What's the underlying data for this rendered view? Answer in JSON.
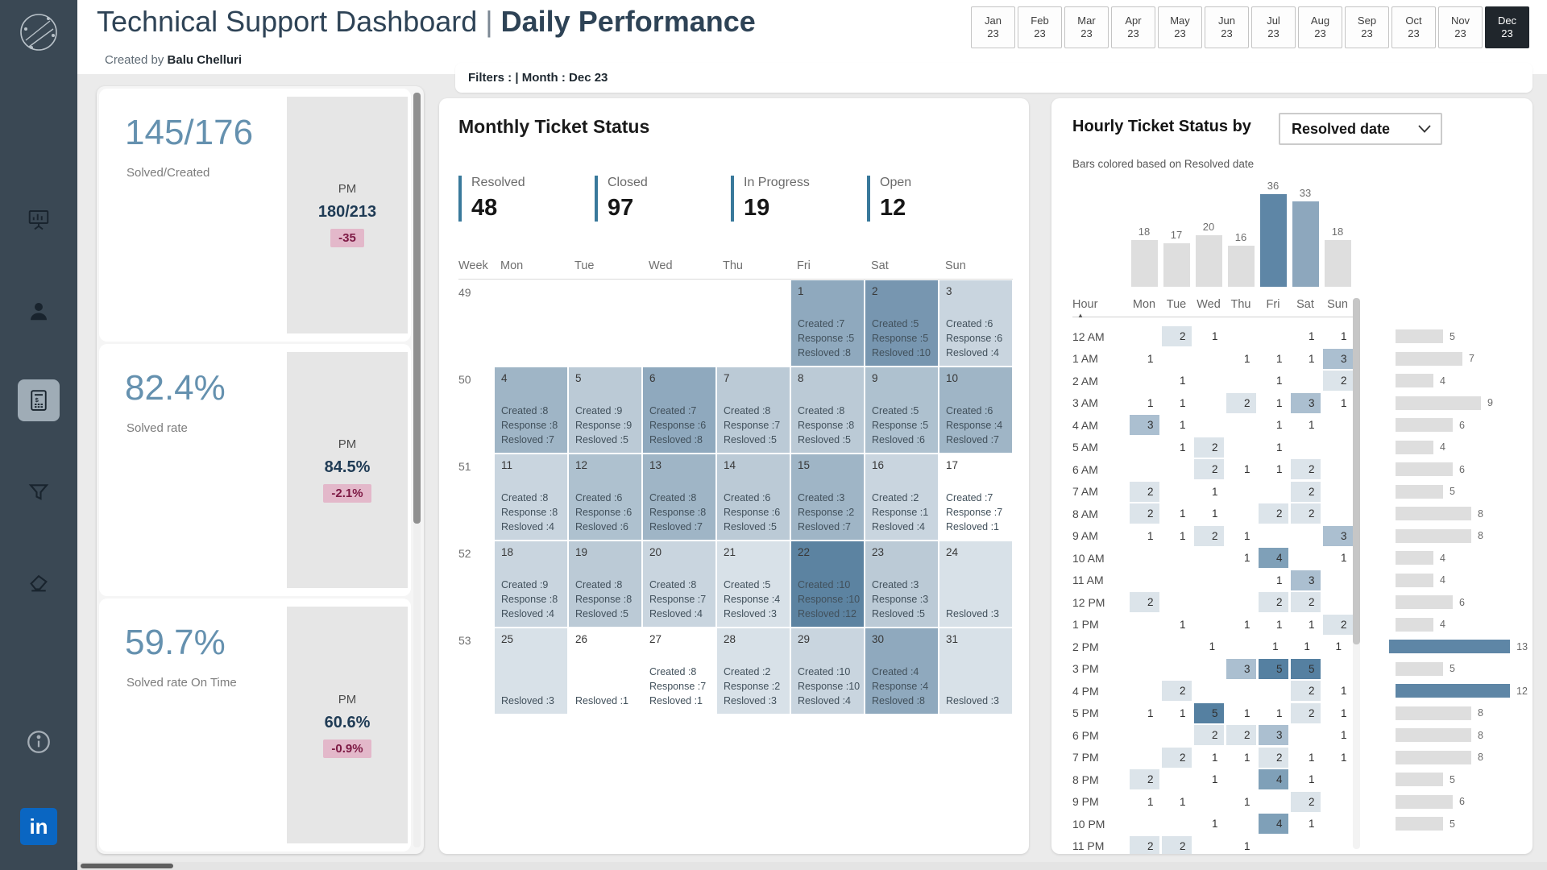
{
  "sidebar": {
    "linkedin_label": "in"
  },
  "header": {
    "title": "Technical Support Dashboard",
    "separator": "|",
    "subtitle": "Daily Performance",
    "created_by_prefix": "Created by ",
    "created_by_name": "Balu Chelluri"
  },
  "month_tabs": {
    "items": [
      {
        "month": "Jan",
        "year": "23"
      },
      {
        "month": "Feb",
        "year": "23"
      },
      {
        "month": "Mar",
        "year": "23"
      },
      {
        "month": "Apr",
        "year": "23"
      },
      {
        "month": "May",
        "year": "23"
      },
      {
        "month": "Jun",
        "year": "23"
      },
      {
        "month": "Jul",
        "year": "23"
      },
      {
        "month": "Aug",
        "year": "23"
      },
      {
        "month": "Sep",
        "year": "23"
      },
      {
        "month": "Oct",
        "year": "23"
      },
      {
        "month": "Nov",
        "year": "23"
      },
      {
        "month": "Dec",
        "year": "23",
        "active": true
      }
    ]
  },
  "filters_bar": {
    "text": "Filters : | Month : Dec 23"
  },
  "kpi_cards": [
    {
      "value": "145/176",
      "label": "Solved/Created",
      "pm_label": "PM",
      "pm_value": "180/213",
      "delta": "-35"
    },
    {
      "value": "82.4%",
      "label": "Solved rate",
      "pm_label": "PM",
      "pm_value": "84.5%",
      "delta": "-2.1%"
    },
    {
      "value": "59.7%",
      "label": "Solved rate On Time",
      "pm_label": "PM",
      "pm_value": "60.6%",
      "delta": "-0.9%"
    }
  ],
  "monthly": {
    "title": "Monthly Ticket Status",
    "statuses": [
      {
        "label": "Resolved",
        "value": "48"
      },
      {
        "label": "Closed",
        "value": "97"
      },
      {
        "label": "In Progress",
        "value": "19"
      },
      {
        "label": "Open",
        "value": "12"
      }
    ],
    "calendar": {
      "columns": [
        "Week",
        "Mon",
        "Tue",
        "Wed",
        "Thu",
        "Fri",
        "Sat",
        "Sun"
      ],
      "line_labels": {
        "created": "Created :",
        "response": "Response :",
        "resolved": "Resloved :"
      },
      "weeks": [
        {
          "week": "49",
          "days": [
            null,
            null,
            null,
            null,
            {
              "day": "1",
              "created": 7,
              "response": 5,
              "resolved": 8
            },
            {
              "day": "2",
              "created": 5,
              "response": 5,
              "resolved": 10
            },
            {
              "day": "3",
              "created": 6,
              "response": 6,
              "resolved": 4
            }
          ]
        },
        {
          "week": "50",
          "days": [
            {
              "day": "4",
              "created": 8,
              "response": 8,
              "resolved": 7
            },
            {
              "day": "5",
              "created": 9,
              "response": 9,
              "resolved": 5
            },
            {
              "day": "6",
              "created": 7,
              "response": 6,
              "resolved": 8
            },
            {
              "day": "7",
              "created": 8,
              "response": 7,
              "resolved": 5
            },
            {
              "day": "8",
              "created": 8,
              "response": 8,
              "resolved": 5
            },
            {
              "day": "9",
              "created": 5,
              "response": 5,
              "resolved": 6
            },
            {
              "day": "10",
              "created": 6,
              "response": 4,
              "resolved": 7
            }
          ]
        },
        {
          "week": "51",
          "days": [
            {
              "day": "11",
              "created": 8,
              "response": 8,
              "resolved": 4
            },
            {
              "day": "12",
              "created": 6,
              "response": 6,
              "resolved": 6
            },
            {
              "day": "13",
              "created": 8,
              "response": 8,
              "resolved": 7
            },
            {
              "day": "14",
              "created": 6,
              "response": 6,
              "resolved": 5
            },
            {
              "day": "15",
              "created": 3,
              "response": 2,
              "resolved": 7
            },
            {
              "day": "16",
              "created": 2,
              "response": 1,
              "resolved": 4
            },
            {
              "day": "17",
              "created": 7,
              "response": 7,
              "resolved": 1
            }
          ]
        },
        {
          "week": "52",
          "days": [
            {
              "day": "18",
              "created": 9,
              "response": 8,
              "resolved": 4
            },
            {
              "day": "19",
              "created": 8,
              "response": 8,
              "resolved": 5
            },
            {
              "day": "20",
              "created": 8,
              "response": 7,
              "resolved": 4
            },
            {
              "day": "21",
              "created": 5,
              "response": 4,
              "resolved": 3
            },
            {
              "day": "22",
              "created": 10,
              "response": 10,
              "resolved": 12
            },
            {
              "day": "23",
              "created": 3,
              "response": 3,
              "resolved": 5
            },
            {
              "day": "24",
              "resolved": 3
            }
          ]
        },
        {
          "week": "53",
          "days": [
            {
              "day": "25",
              "resolved": 3
            },
            {
              "day": "26",
              "resolved": 1
            },
            {
              "day": "27",
              "created": 8,
              "response": 7,
              "resolved": 1
            },
            {
              "day": "28",
              "created": 2,
              "response": 2,
              "resolved": 3
            },
            {
              "day": "29",
              "created": 10,
              "response": 10,
              "resolved": 4
            },
            {
              "day": "30",
              "created": 4,
              "response": 4,
              "resolved": 8
            },
            {
              "day": "31",
              "resolved": 3
            }
          ]
        }
      ]
    }
  },
  "hourly": {
    "title": "Hourly Ticket Status by",
    "dropdown_value": "Resolved date",
    "subtitle": "Bars colored based on Resolved date",
    "hour_label": "Hour",
    "day_columns": [
      "Mon",
      "Tue",
      "Wed",
      "Thu",
      "Fri",
      "Sat",
      "Sun"
    ],
    "top_bars": {
      "values": [
        18,
        17,
        20,
        16,
        36,
        33,
        18
      ],
      "colors": [
        "#DEDEDE",
        "#DEDEDE",
        "#DEDEDE",
        "#DEDEDE",
        "#5E86A6",
        "#8DA7BD",
        "#DEDEDE"
      ]
    },
    "rows": [
      {
        "hour": "12 AM",
        "cells": [
          null,
          2,
          1,
          null,
          null,
          1,
          1
        ],
        "bar": 5
      },
      {
        "hour": "1 AM",
        "cells": [
          1,
          null,
          null,
          1,
          1,
          1,
          3
        ],
        "bar": 7
      },
      {
        "hour": "2 AM",
        "cells": [
          null,
          1,
          null,
          null,
          1,
          null,
          2
        ],
        "bar": 4
      },
      {
        "hour": "3 AM",
        "cells": [
          1,
          1,
          null,
          2,
          1,
          3,
          1
        ],
        "bar": 9
      },
      {
        "hour": "4 AM",
        "cells": [
          3,
          1,
          null,
          null,
          1,
          1,
          null
        ],
        "bar": 6
      },
      {
        "hour": "5 AM",
        "cells": [
          null,
          1,
          2,
          null,
          1,
          null,
          null
        ],
        "bar": 4
      },
      {
        "hour": "6 AM",
        "cells": [
          null,
          null,
          2,
          1,
          1,
          2,
          null
        ],
        "bar": 6
      },
      {
        "hour": "7 AM",
        "cells": [
          2,
          null,
          1,
          null,
          null,
          2,
          null
        ],
        "bar": 5
      },
      {
        "hour": "8 AM",
        "cells": [
          2,
          1,
          1,
          null,
          2,
          2,
          null
        ],
        "bar": 8
      },
      {
        "hour": "9 AM",
        "cells": [
          1,
          1,
          2,
          1,
          null,
          null,
          3
        ],
        "bar": 8
      },
      {
        "hour": "10 AM",
        "cells": [
          null,
          null,
          null,
          1,
          4,
          null,
          1
        ],
        "bar": 4
      },
      {
        "hour": "11 AM",
        "cells": [
          null,
          null,
          null,
          null,
          1,
          3,
          null
        ],
        "bar": 4
      },
      {
        "hour": "12 PM",
        "cells": [
          2,
          null,
          null,
          null,
          2,
          2,
          null
        ],
        "bar": 6
      },
      {
        "hour": "1 PM",
        "cells": [
          null,
          1,
          null,
          1,
          1,
          1,
          2
        ],
        "bar": 4
      },
      {
        "hour": "2 PM",
        "cells": [
          null,
          null,
          1,
          null,
          1,
          1,
          1
        ],
        "bar": 13,
        "bar_highlight": true
      },
      {
        "hour": "3 PM",
        "cells": [
          null,
          null,
          null,
          3,
          5,
          5,
          null
        ],
        "bar": 5
      },
      {
        "hour": "4 PM",
        "cells": [
          null,
          2,
          null,
          null,
          null,
          2,
          1
        ],
        "bar": 12,
        "bar_highlight": true
      },
      {
        "hour": "5 PM",
        "cells": [
          1,
          1,
          5,
          1,
          1,
          2,
          1
        ],
        "bar": 8
      },
      {
        "hour": "6 PM",
        "cells": [
          null,
          null,
          2,
          2,
          3,
          null,
          1
        ],
        "bar": 8
      },
      {
        "hour": "7 PM",
        "cells": [
          null,
          2,
          1,
          1,
          2,
          1,
          1
        ],
        "bar": 8
      },
      {
        "hour": "8 PM",
        "cells": [
          2,
          null,
          1,
          null,
          4,
          1,
          null
        ],
        "bar": 5
      },
      {
        "hour": "9 PM",
        "cells": [
          1,
          1,
          null,
          1,
          null,
          2,
          null
        ],
        "bar": 6
      },
      {
        "hour": "10 PM",
        "cells": [
          null,
          null,
          1,
          null,
          4,
          1,
          null
        ],
        "bar": 5
      },
      {
        "hour": "11 PM",
        "cells": [
          2,
          2,
          null,
          1,
          null,
          null,
          null
        ],
        "bar": null
      }
    ]
  },
  "palette": {
    "sidebar_bg": "#3A4854",
    "accent_blue": "#5E86A6",
    "accent_blue_light": "#8DA7BD",
    "bar_gray": "#DEDEDE",
    "kpi_number": "#6591AF",
    "kpi_pm_value": "#1F3B55",
    "delta_bg": "#E3B8CA",
    "delta_text": "#7D1944",
    "status_border": "#39799B",
    "active_tab_bg": "#20262C",
    "linkedin_blue": "#0A66C2",
    "heat_scale": {
      "2": "#DCE4EA",
      "3": "#ABBFD0",
      "4": "#7FA0B8",
      "5": "#5580A1"
    },
    "calendar_scale": [
      [
        12,
        "#5C83A1"
      ],
      [
        10,
        "#7796B0"
      ],
      [
        8,
        "#8FA9BE"
      ],
      [
        7,
        "#9FB5C6"
      ],
      [
        6,
        "#AEC1CF"
      ],
      [
        5,
        "#BBCAD6"
      ],
      [
        4,
        "#C9D5DF"
      ],
      [
        3,
        "#D8E1E8"
      ],
      [
        0,
        "#FFFFFF"
      ]
    ]
  }
}
